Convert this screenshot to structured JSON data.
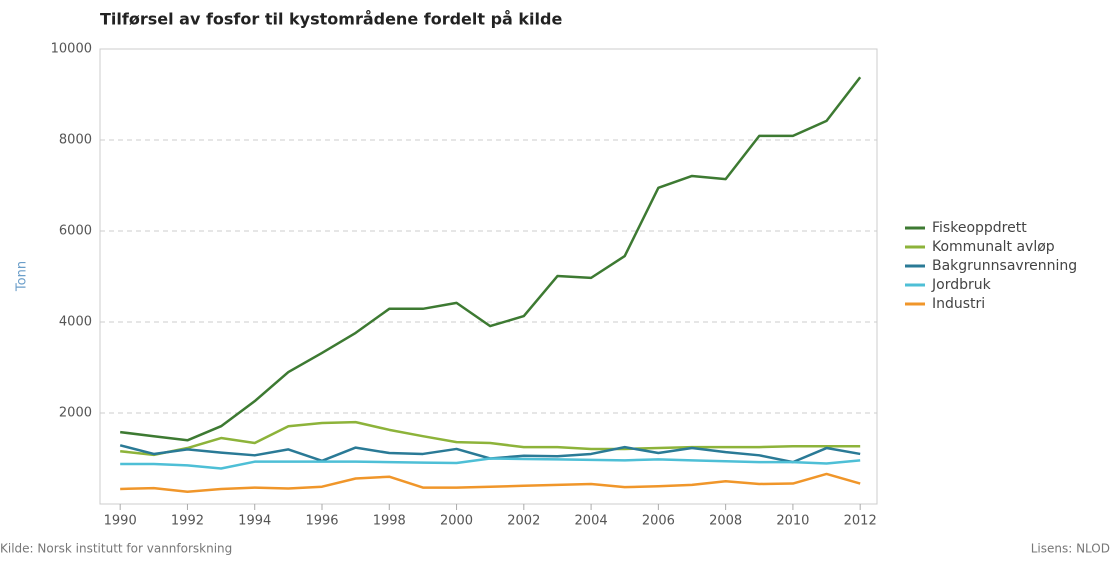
{
  "chart_data": {
    "type": "line",
    "title": "Tilførsel av fosfor til kystområdene fordelt på kilde",
    "y_label": "Tonn",
    "source": "Kilde: Norsk institutt for vannforskning",
    "license": "Lisens: NLOD",
    "x": [
      1990,
      1991,
      1992,
      1993,
      1994,
      1995,
      1996,
      1997,
      1998,
      1999,
      2000,
      2001,
      2002,
      2003,
      2004,
      2005,
      2006,
      2007,
      2008,
      2009,
      2010,
      2011,
      2012
    ],
    "xlim": [
      1989.4,
      2012.5
    ],
    "xticks": [
      1990,
      1992,
      1994,
      1996,
      1998,
      2000,
      2002,
      2004,
      2006,
      2008,
      2010,
      2012
    ],
    "ylim": [
      0,
      10000
    ],
    "yticks": [
      2000,
      4000,
      6000,
      8000,
      10000
    ],
    "grid": true,
    "legend": "right",
    "series": [
      {
        "name": "Fiskeoppdrett",
        "color": "#3d7a32",
        "values": [
          1580,
          1490,
          1400,
          1710,
          2260,
          2900,
          3320,
          3760,
          4290,
          4290,
          4420,
          3910,
          4130,
          5010,
          4970,
          5450,
          6950,
          7210,
          7140,
          8090,
          8090,
          8420,
          9380
        ]
      },
      {
        "name": "Kommunalt avløp",
        "color": "#8db33a",
        "values": [
          1160,
          1080,
          1230,
          1450,
          1340,
          1710,
          1780,
          1800,
          1630,
          1490,
          1360,
          1340,
          1250,
          1250,
          1210,
          1210,
          1230,
          1250,
          1250,
          1250,
          1270,
          1270,
          1270
        ]
      },
      {
        "name": "Bakgrunnsavrenning",
        "color": "#2a7a96",
        "values": [
          1290,
          1100,
          1200,
          1130,
          1070,
          1200,
          950,
          1240,
          1120,
          1100,
          1210,
          1000,
          1060,
          1050,
          1100,
          1250,
          1120,
          1230,
          1140,
          1070,
          920,
          1230,
          1100
        ]
      },
      {
        "name": "Jordbruk",
        "color": "#4ebfd6",
        "values": [
          880,
          880,
          850,
          780,
          930,
          930,
          930,
          930,
          920,
          910,
          900,
          1000,
          990,
          980,
          970,
          960,
          980,
          960,
          940,
          920,
          920,
          890,
          960
        ]
      },
      {
        "name": "Industri",
        "color": "#f0962a",
        "values": [
          330,
          350,
          270,
          330,
          360,
          340,
          380,
          560,
          600,
          360,
          360,
          380,
          400,
          420,
          440,
          370,
          390,
          420,
          500,
          440,
          450,
          660,
          450
        ]
      }
    ]
  }
}
